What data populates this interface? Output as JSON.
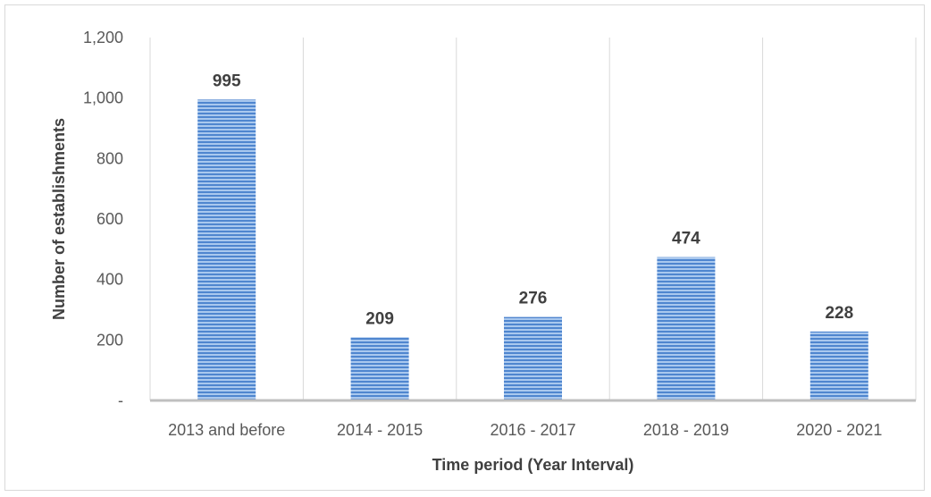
{
  "chart_data": {
    "type": "bar",
    "title": "",
    "xlabel": "Time period (Year Interval)",
    "ylabel": "Number of establishments",
    "categories": [
      "2013 and before",
      "2014 - 2015",
      "2016 - 2017",
      "2018 - 2019",
      "2020 - 2021"
    ],
    "values": [
      995,
      209,
      276,
      474,
      228
    ],
    "data_labels": [
      "995",
      "209",
      "276",
      "474",
      "228"
    ],
    "ylim": [
      0,
      1200
    ],
    "y_ticks": [
      0,
      200,
      400,
      600,
      800,
      1000,
      1200
    ],
    "y_tick_labels": [
      "-",
      "200",
      "400",
      "600",
      "800",
      "1,000",
      "1,200"
    ],
    "grid": "vertical category separators",
    "legend": "none",
    "colors": {
      "bar_fill": "#a9c8ee",
      "bar_stripe": "#4f86cf",
      "axis": "#bfbfbf",
      "grid": "#d9d9d9",
      "text": "#595959"
    }
  }
}
